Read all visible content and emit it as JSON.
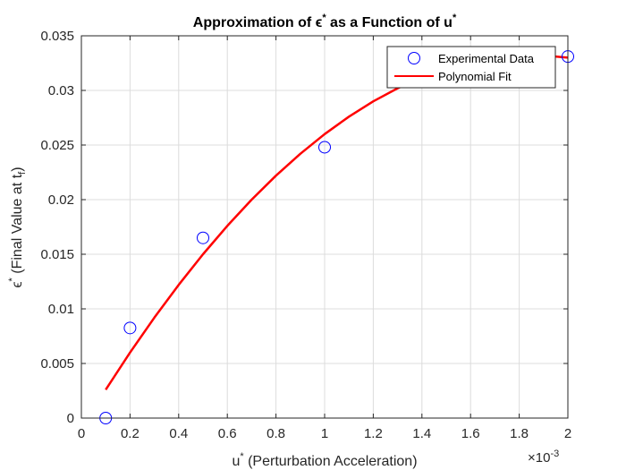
{
  "chart_data": {
    "type": "scatter",
    "title": {
      "prefix": "Approximation of ",
      "eps": "ϵ",
      "star": "*",
      "middle": " as a Function of u",
      "star2": "*"
    },
    "xlabel": {
      "base": "u",
      "star": "*",
      "rest": " (Perturbation Acceleration)"
    },
    "ylabel": {
      "eps": "ϵ",
      "star": "*",
      "rest": " (Final Value at t",
      "sub": "f",
      "close": ")"
    },
    "x_exponent": {
      "base": "×10",
      "exp": "-3"
    },
    "xlim": [
      0,
      2
    ],
    "ylim": [
      0,
      0.035
    ],
    "xticks": [
      0,
      0.2,
      0.4,
      0.6,
      0.8,
      1,
      1.2,
      1.4,
      1.6,
      1.8,
      2
    ],
    "xtick_labels": [
      "0",
      "0.2",
      "0.4",
      "0.6",
      "0.8",
      "1",
      "1.2",
      "1.4",
      "1.6",
      "1.8",
      "2"
    ],
    "yticks": [
      0,
      0.005,
      0.01,
      0.015,
      0.02,
      0.025,
      0.03,
      0.035
    ],
    "ytick_labels": [
      "0",
      "0.005",
      "0.01",
      "0.015",
      "0.02",
      "0.025",
      "0.03",
      "0.035"
    ],
    "grid": true,
    "legend_position": "top-right",
    "series": [
      {
        "name": "Experimental Data",
        "kind": "markers",
        "color": "#0000ff",
        "x": [
          0.1,
          0.2,
          0.5,
          1.0,
          2.0
        ],
        "y": [
          0.0,
          0.00825,
          0.0165,
          0.0248,
          0.0331
        ]
      },
      {
        "name": "Polynomial Fit",
        "kind": "line",
        "color": "#ff0000",
        "x": [
          0.1,
          0.2,
          0.3,
          0.4,
          0.5,
          0.6,
          0.7,
          0.8,
          0.9,
          1.0,
          1.1,
          1.2,
          1.3,
          1.4,
          1.5,
          1.6,
          1.7,
          1.8,
          1.9,
          2.0
        ],
        "y": [
          0.0026,
          0.006,
          0.0092,
          0.0122,
          0.015,
          0.0176,
          0.02,
          0.0222,
          0.0242,
          0.026,
          0.0276,
          0.029,
          0.0302,
          0.0312,
          0.032,
          0.0326,
          0.033,
          0.0332,
          0.0332,
          0.033
        ]
      }
    ]
  }
}
